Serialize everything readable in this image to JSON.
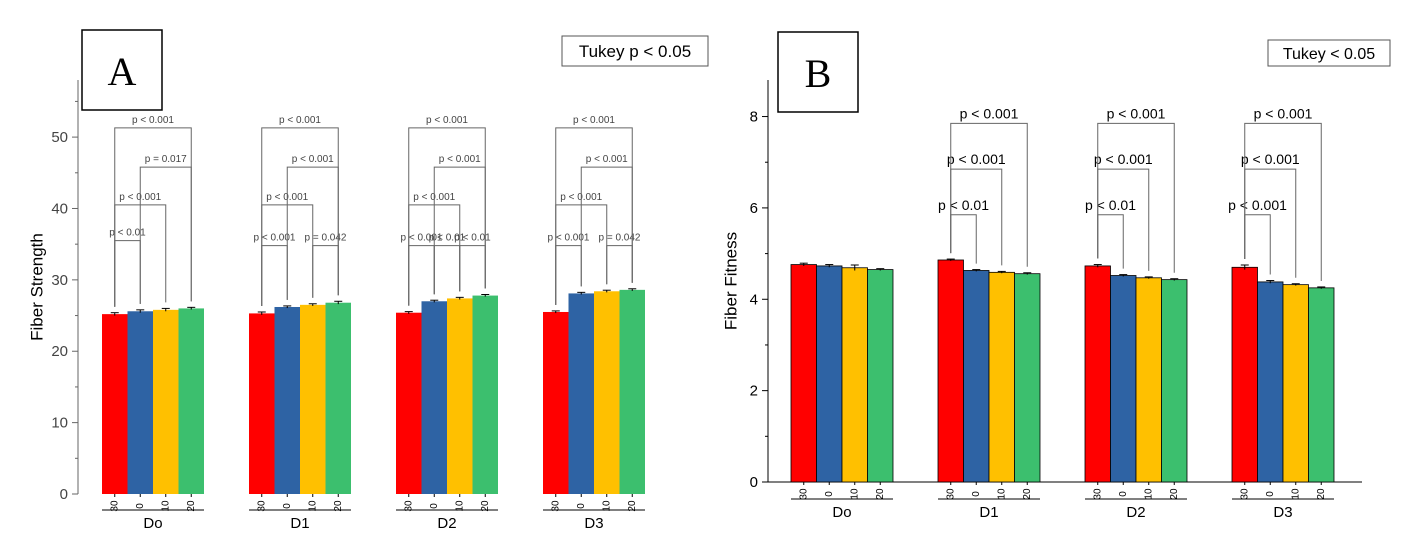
{
  "chart_data": [
    {
      "type": "bar",
      "panel_label": "A",
      "tukey_label": "Tukey p < 0.05",
      "ylabel": "Fiber Strength",
      "ylim": [
        0,
        58
      ],
      "yticks": [
        0,
        10,
        20,
        30,
        40,
        50
      ],
      "groups": [
        "Do",
        "D1",
        "D2",
        "D3"
      ],
      "categories": [
        "30",
        "0",
        "10",
        "20"
      ],
      "series_colors": [
        "#ff0000",
        "#2e63a4",
        "#ffc000",
        "#3cbf6e"
      ],
      "values": [
        [
          25.2,
          25.6,
          25.8,
          26.0
        ],
        [
          25.3,
          26.2,
          26.5,
          26.8
        ],
        [
          25.4,
          27.0,
          27.4,
          27.8
        ],
        [
          25.5,
          28.1,
          28.4,
          28.6
        ]
      ],
      "errors": [
        [
          0.2,
          0.2,
          0.2,
          0.15
        ],
        [
          0.2,
          0.15,
          0.15,
          0.2
        ],
        [
          0.15,
          0.15,
          0.15,
          0.15
        ],
        [
          0.15,
          0.15,
          0.15,
          0.15
        ]
      ],
      "comparisons": [
        {
          "group": 0,
          "from": 0,
          "to": 1,
          "label": "p < 0.01",
          "y": 35.5
        },
        {
          "group": 0,
          "from": 0,
          "to": 2,
          "label": "p < 0.001",
          "y": 40.5
        },
        {
          "group": 0,
          "from": 1,
          "to": 3,
          "label": "p = 0.017",
          "y": 45.8
        },
        {
          "group": 0,
          "from": 0,
          "to": 3,
          "label": "p < 0.001",
          "y": 51.3
        },
        {
          "group": 1,
          "from": 0,
          "to": 1,
          "label": "p < 0.001",
          "y": 34.8
        },
        {
          "group": 1,
          "from": 2,
          "to": 3,
          "label": "p = 0.042",
          "y": 34.8
        },
        {
          "group": 1,
          "from": 0,
          "to": 2,
          "label": "p < 0.001",
          "y": 40.5
        },
        {
          "group": 1,
          "from": 1,
          "to": 3,
          "label": "p < 0.001",
          "y": 45.8
        },
        {
          "group": 1,
          "from": 0,
          "to": 3,
          "label": "p < 0.001",
          "y": 51.3
        },
        {
          "group": 2,
          "from": 0,
          "to": 1,
          "label": "p < 0.001",
          "y": 34.8
        },
        {
          "group": 2,
          "from": 1,
          "to": 2,
          "label": "p < 0.01",
          "y": 34.8
        },
        {
          "group": 2,
          "from": 2,
          "to": 3,
          "label": "p < 0.01",
          "y": 34.8
        },
        {
          "group": 2,
          "from": 0,
          "to": 2,
          "label": "p < 0.001",
          "y": 40.5
        },
        {
          "group": 2,
          "from": 1,
          "to": 3,
          "label": "p < 0.001",
          "y": 45.8
        },
        {
          "group": 2,
          "from": 0,
          "to": 3,
          "label": "p < 0.001",
          "y": 51.3
        },
        {
          "group": 3,
          "from": 0,
          "to": 1,
          "label": "p < 0.001",
          "y": 34.8
        },
        {
          "group": 3,
          "from": 2,
          "to": 3,
          "label": "p = 0.042",
          "y": 34.8
        },
        {
          "group": 3,
          "from": 0,
          "to": 2,
          "label": "p < 0.001",
          "y": 40.5
        },
        {
          "group": 3,
          "from": 1,
          "to": 3,
          "label": "p < 0.001",
          "y": 45.8
        },
        {
          "group": 3,
          "from": 0,
          "to": 3,
          "label": "p < 0.001",
          "y": 51.3
        }
      ]
    },
    {
      "type": "bar",
      "panel_label": "B",
      "tukey_label": "Tukey < 0.05",
      "ylabel": "Fiber Fitness",
      "ylim": [
        0,
        8.8
      ],
      "yticks": [
        0,
        2,
        4,
        6,
        8
      ],
      "groups": [
        "Do",
        "D1",
        "D2",
        "D3"
      ],
      "categories": [
        "30",
        "0",
        "10",
        "20"
      ],
      "series_colors": [
        "#ff0000",
        "#2e63a4",
        "#ffc000",
        "#3cbf6e"
      ],
      "values": [
        [
          4.76,
          4.73,
          4.69,
          4.65
        ],
        [
          4.86,
          4.63,
          4.59,
          4.56
        ],
        [
          4.73,
          4.52,
          4.47,
          4.43
        ],
        [
          4.7,
          4.38,
          4.32,
          4.25
        ]
      ],
      "errors": [
        [
          0.03,
          0.03,
          0.06,
          0.02
        ],
        [
          0.02,
          0.02,
          0.02,
          0.02
        ],
        [
          0.03,
          0.02,
          0.02,
          0.02
        ],
        [
          0.05,
          0.03,
          0.02,
          0.02
        ]
      ],
      "comparisons": [
        {
          "group": 1,
          "from": 0,
          "to": 1,
          "label": "p < 0.01",
          "y": 5.85
        },
        {
          "group": 1,
          "from": 0,
          "to": 2,
          "label": "p < 0.001",
          "y": 6.85
        },
        {
          "group": 1,
          "from": 0,
          "to": 3,
          "label": "p < 0.001",
          "y": 7.85
        },
        {
          "group": 2,
          "from": 0,
          "to": 1,
          "label": "p < 0.01",
          "y": 5.85
        },
        {
          "group": 2,
          "from": 0,
          "to": 2,
          "label": "p < 0.001",
          "y": 6.85
        },
        {
          "group": 2,
          "from": 0,
          "to": 3,
          "label": "p < 0.001",
          "y": 7.85
        },
        {
          "group": 3,
          "from": 0,
          "to": 1,
          "label": "p < 0.001",
          "y": 5.85
        },
        {
          "group": 3,
          "from": 0,
          "to": 2,
          "label": "p < 0.001",
          "y": 6.85
        },
        {
          "group": 3,
          "from": 0,
          "to": 3,
          "label": "p < 0.001",
          "y": 7.85
        }
      ]
    }
  ]
}
